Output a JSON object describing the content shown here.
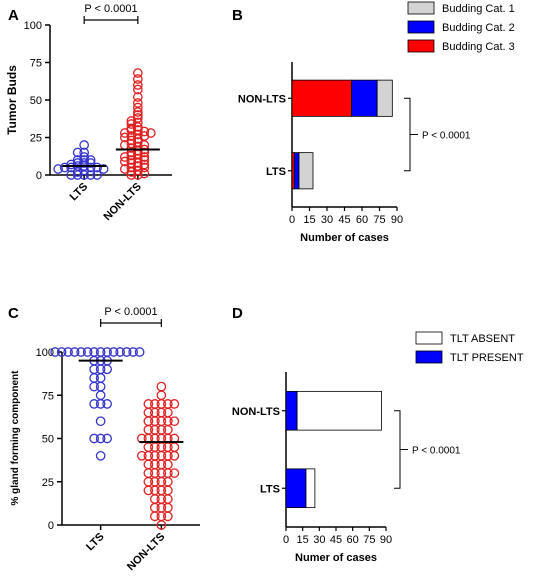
{
  "chart_data": [
    {
      "panel": "A",
      "type": "scatter",
      "ylabel": "Tumor Buds",
      "categories": [
        "LTS",
        "NON-LTS"
      ],
      "ylim": [
        0,
        100
      ],
      "yticks": [
        0,
        25,
        50,
        75,
        100
      ],
      "annotation": "P < 0.0001",
      "series": [
        {
          "color": "#3333cc",
          "median": 6,
          "values": [
            20,
            15,
            15,
            12,
            10,
            10,
            10,
            8,
            8,
            8,
            7,
            6,
            6,
            5,
            5,
            5,
            5,
            4,
            4,
            3,
            2,
            0,
            0,
            0,
            0,
            0
          ]
        },
        {
          "color": "#e02020",
          "median": 17,
          "values": [
            68,
            64,
            60,
            57,
            52,
            48,
            45,
            42,
            40,
            38,
            36,
            35,
            34,
            32,
            31,
            30,
            30,
            29,
            28,
            28,
            27,
            26,
            26,
            25,
            24,
            23,
            22,
            21,
            20,
            20,
            19,
            18,
            17,
            16,
            15,
            15,
            14,
            13,
            12,
            12,
            11,
            10,
            10,
            9,
            8,
            8,
            7,
            6,
            5,
            5,
            4,
            3,
            2,
            1,
            0,
            0
          ]
        }
      ]
    },
    {
      "panel": "B",
      "type": "bar",
      "orientation": "horizontal",
      "stacked": true,
      "xlabel": "Number of cases",
      "categories": [
        "NON-LTS",
        "LTS"
      ],
      "xlim": [
        0,
        90
      ],
      "xticks": [
        0,
        15,
        30,
        45,
        60,
        75,
        90
      ],
      "annotation": "P < 0.0001",
      "legend_position": "top-right",
      "series": [
        {
          "name": "Budding Cat. 3",
          "color": "#ff0000",
          "values": [
            51,
            2
          ]
        },
        {
          "name": "Budding Cat. 2",
          "color": "#0000ff",
          "values": [
            22,
            4
          ]
        },
        {
          "name": "Budding Cat. 1",
          "color": "#d3d3d3",
          "values": [
            13,
            12
          ]
        }
      ],
      "legend_order": [
        "Budding Cat. 1",
        "Budding Cat. 2",
        "Budding Cat. 3"
      ]
    },
    {
      "panel": "C",
      "type": "scatter",
      "ylabel": "% gland forming component",
      "categories": [
        "LTS",
        "NON-LTS"
      ],
      "ylim": [
        0,
        100
      ],
      "yticks": [
        0,
        25,
        50,
        75,
        100
      ],
      "annotation": "P < 0.0001",
      "series": [
        {
          "color": "#3333cc",
          "median": 95,
          "values": [
            100,
            100,
            100,
            100,
            100,
            100,
            100,
            100,
            100,
            100,
            100,
            100,
            100,
            100,
            95,
            95,
            95,
            90,
            90,
            90,
            85,
            85,
            80,
            80,
            75,
            70,
            70,
            70,
            60,
            50,
            50,
            50,
            40
          ]
        },
        {
          "color": "#e02020",
          "median": 48,
          "values": [
            80,
            75,
            70,
            70,
            70,
            70,
            70,
            65,
            65,
            65,
            65,
            60,
            60,
            60,
            60,
            60,
            55,
            55,
            55,
            55,
            50,
            50,
            50,
            50,
            50,
            50,
            45,
            45,
            45,
            45,
            45,
            40,
            40,
            40,
            40,
            40,
            40,
            35,
            35,
            35,
            35,
            30,
            30,
            30,
            30,
            30,
            25,
            25,
            25,
            25,
            20,
            20,
            20,
            20,
            15,
            15,
            15,
            10,
            10,
            10,
            5,
            5,
            5,
            0
          ]
        }
      ]
    },
    {
      "panel": "D",
      "type": "bar",
      "orientation": "horizontal",
      "stacked": true,
      "xlabel": "Numer of cases",
      "categories": [
        "NON-LTS",
        "LTS"
      ],
      "xlim": [
        0,
        90
      ],
      "xticks": [
        0,
        15,
        30,
        45,
        60,
        75,
        90
      ],
      "annotation": "P < 0.0001",
      "legend_position": "top-right",
      "series": [
        {
          "name": "TLT PRESENT",
          "color": "#0000ff",
          "values": [
            10,
            18
          ]
        },
        {
          "name": "TLT ABSENT",
          "color": "#ffffff",
          "values": [
            76,
            8
          ]
        }
      ],
      "legend_order": [
        "TLT ABSENT",
        "TLT PRESENT"
      ]
    }
  ]
}
